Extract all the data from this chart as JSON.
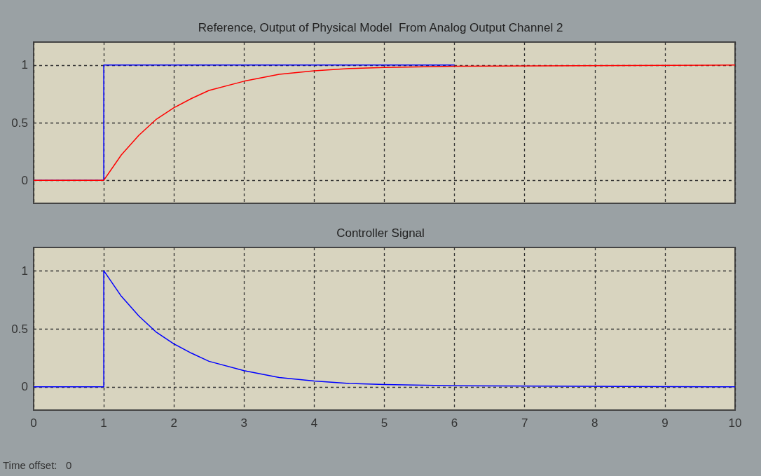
{
  "chart_data": [
    {
      "type": "line",
      "title": "Reference, Output of Physical Model  From Analog Output Channel 2",
      "xlim": [
        0,
        10
      ],
      "xticks": [
        0,
        1,
        2,
        3,
        4,
        5,
        6,
        7,
        8,
        9,
        10
      ],
      "ylim": [
        -0.2,
        1.2
      ],
      "yticks": [
        0,
        0.5,
        1
      ],
      "grid": true,
      "tick_labels": "y",
      "series": [
        {
          "color": "#0000ff",
          "x": [
            0,
            1,
            1,
            6
          ],
          "values": [
            0,
            0,
            1,
            1
          ]
        },
        {
          "color": "#ff0000",
          "x": [
            0,
            1,
            1.25,
            1.5,
            1.75,
            2,
            2.25,
            2.5,
            3,
            3.5,
            4,
            4.5,
            5,
            6,
            10
          ],
          "values": [
            0,
            0,
            0.22,
            0.39,
            0.53,
            0.63,
            0.71,
            0.78,
            0.86,
            0.92,
            0.95,
            0.97,
            0.98,
            0.99,
            1
          ]
        }
      ]
    },
    {
      "type": "line",
      "title": "Controller Signal",
      "xlim": [
        0,
        10
      ],
      "xticks": [
        0,
        1,
        2,
        3,
        4,
        5,
        6,
        7,
        8,
        9,
        10
      ],
      "ylim": [
        -0.2,
        1.2
      ],
      "yticks": [
        0,
        0.5,
        1
      ],
      "grid": true,
      "annotations": [
        "Time offset:   0"
      ],
      "series": [
        {
          "color": "#0000ff",
          "x": [
            0,
            1,
            1,
            1.25,
            1.5,
            1.75,
            2,
            2.25,
            2.5,
            3,
            3.5,
            4,
            4.5,
            5,
            6,
            10
          ],
          "values": [
            0,
            0,
            1,
            0.78,
            0.61,
            0.47,
            0.37,
            0.29,
            0.22,
            0.14,
            0.08,
            0.05,
            0.03,
            0.02,
            0.01,
            0
          ]
        }
      ]
    }
  ]
}
